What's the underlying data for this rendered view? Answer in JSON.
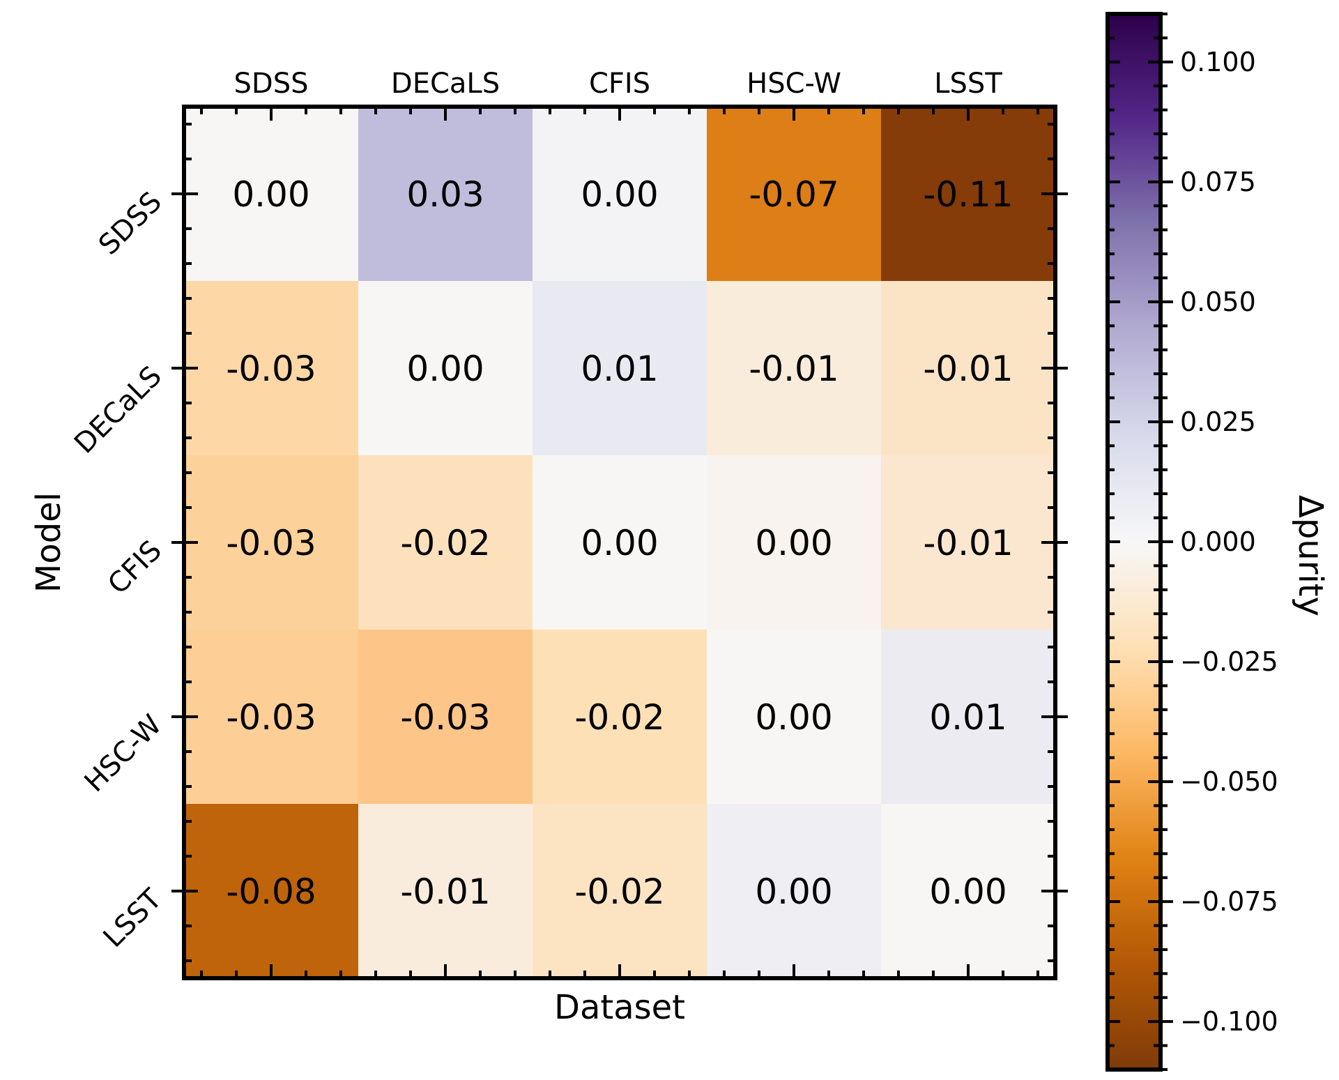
{
  "chart_data": {
    "type": "heatmap",
    "xlabel": "Dataset",
    "ylabel": "Model",
    "x_categories": [
      "SDSS",
      "DECaLS",
      "CFIS",
      "HSC-W",
      "LSST"
    ],
    "y_categories": [
      "SDSS",
      "DECaLS",
      "CFIS",
      "HSC-W",
      "LSST"
    ],
    "values": [
      [
        0.0,
        0.03,
        0.0,
        -0.07,
        -0.11
      ],
      [
        -0.03,
        0.0,
        0.01,
        -0.01,
        -0.01
      ],
      [
        -0.03,
        -0.02,
        0.0,
        0.0,
        -0.01
      ],
      [
        -0.03,
        -0.03,
        -0.02,
        0.0,
        0.01
      ],
      [
        -0.08,
        -0.01,
        -0.02,
        0.0,
        0.0
      ]
    ],
    "cell_labels": [
      [
        "0.00",
        "0.03",
        "0.00",
        "-0.07",
        "-0.11"
      ],
      [
        "-0.03",
        "0.00",
        "0.01",
        "-0.01",
        "-0.01"
      ],
      [
        "-0.03",
        "-0.02",
        "0.00",
        "0.00",
        "-0.01"
      ],
      [
        "-0.03",
        "-0.03",
        "-0.02",
        "0.00",
        "0.01"
      ],
      [
        "-0.08",
        "-0.01",
        "-0.02",
        "0.00",
        "0.00"
      ]
    ],
    "cell_colors": [
      [
        "#f7f6f4",
        "#c0bcdb",
        "#f3f3f5",
        "#dd7e17",
        "#853c08"
      ],
      [
        "#fdd8a6",
        "#f7f6f4",
        "#e9e9f1",
        "#faecdb",
        "#fbe4c6"
      ],
      [
        "#fdd19a",
        "#fde1bc",
        "#f7f6f4",
        "#f8f3ee",
        "#fbe6cf"
      ],
      [
        "#fdcf96",
        "#fdc588",
        "#fde0b6",
        "#f7f6f4",
        "#ebebf1"
      ],
      [
        "#bf640b",
        "#f9ecdd",
        "#fce3c2",
        "#efeef3",
        "#f7f6f4"
      ]
    ],
    "colorbar": {
      "label": "Δpurity",
      "range": [
        -0.11,
        0.11
      ],
      "ticks": [
        0.1,
        0.075,
        0.05,
        0.025,
        0.0,
        -0.025,
        -0.05,
        -0.075,
        -0.1
      ],
      "tick_labels": [
        "0.100",
        "0.075",
        "0.050",
        "0.025",
        "0.000",
        "−0.025",
        "−0.050",
        "−0.075",
        "−0.100"
      ],
      "colormap": "PuOr",
      "stops": [
        {
          "value": -0.11,
          "color": "#7f3b08"
        },
        {
          "value": -0.088,
          "color": "#b35806"
        },
        {
          "value": -0.066,
          "color": "#e08214"
        },
        {
          "value": -0.044,
          "color": "#fdb863"
        },
        {
          "value": -0.022,
          "color": "#fee0b6"
        },
        {
          "value": 0.0,
          "color": "#f7f7f7"
        },
        {
          "value": 0.022,
          "color": "#d8daeb"
        },
        {
          "value": 0.044,
          "color": "#b2abd2"
        },
        {
          "value": 0.066,
          "color": "#8073ac"
        },
        {
          "value": 0.088,
          "color": "#542788"
        },
        {
          "value": 0.11,
          "color": "#2d004b"
        }
      ]
    }
  }
}
